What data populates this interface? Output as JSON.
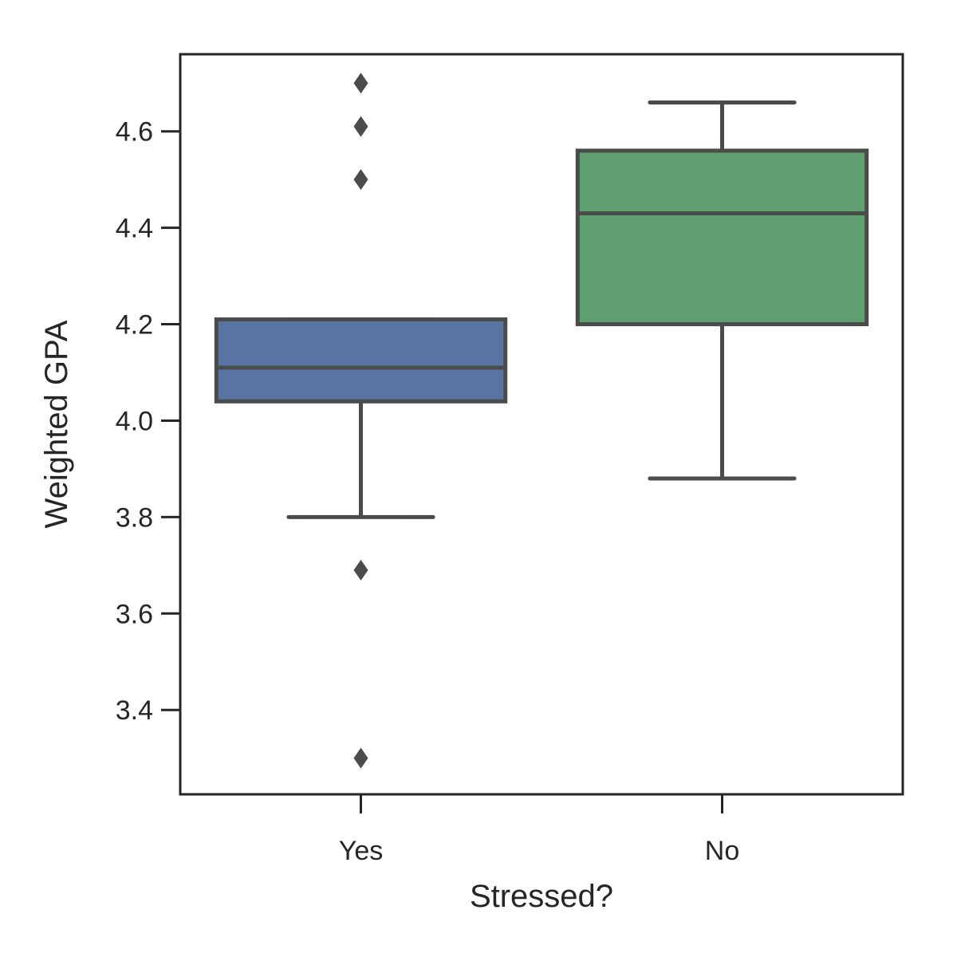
{
  "chart_data": {
    "type": "box",
    "xlabel": "Stressed?",
    "ylabel": "Weighted GPA",
    "ylim": [
      3.225,
      4.76
    ],
    "yticks": [
      3.4,
      3.6,
      3.8,
      4.0,
      4.2,
      4.4,
      4.6
    ],
    "ytick_labels": [
      "3.4",
      "3.6",
      "3.8",
      "4.0",
      "4.2",
      "4.4",
      "4.6"
    ],
    "grid": false,
    "categories": [
      "Yes",
      "No"
    ],
    "boxes": [
      {
        "category": "Yes",
        "whisker_low": 3.8,
        "q1": 4.04,
        "median": 4.11,
        "q3": 4.21,
        "whisker_high": 4.21,
        "outliers": [
          4.7,
          4.61,
          4.5,
          3.69,
          3.3
        ],
        "color": "#5874a3"
      },
      {
        "category": "No",
        "whisker_low": 3.88,
        "q1": 4.2,
        "median": 4.43,
        "q3": 4.56,
        "whisker_high": 4.66,
        "outliers": [],
        "color": "#5f9f70"
      }
    ],
    "line_color": "#4b4b4b"
  }
}
